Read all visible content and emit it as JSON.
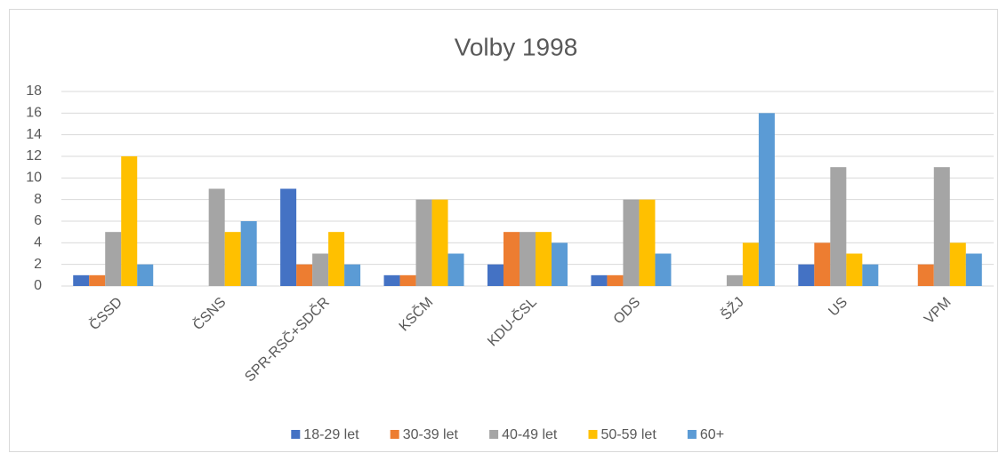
{
  "chart_data": {
    "type": "bar",
    "title": "Volby 1998",
    "categories": [
      "ČSSD",
      "ČSNS",
      "SPR-RSČ+SDČR",
      "KSČM",
      "KDU-ČSL",
      "ODS",
      "ŠŽJ",
      "US",
      "VPM"
    ],
    "series": [
      {
        "name": "18-29 let",
        "color": "#4472c4",
        "values": [
          1,
          0,
          9,
          1,
          2,
          1,
          0,
          2,
          0
        ]
      },
      {
        "name": "30-39 let",
        "color": "#ed7d31",
        "values": [
          1,
          0,
          2,
          1,
          5,
          1,
          0,
          4,
          2
        ]
      },
      {
        "name": "40-49 let",
        "color": "#a5a5a5",
        "values": [
          5,
          9,
          3,
          8,
          5,
          8,
          1,
          11,
          11
        ]
      },
      {
        "name": "50-59 let",
        "color": "#ffc000",
        "values": [
          12,
          5,
          5,
          8,
          5,
          8,
          4,
          3,
          4
        ]
      },
      {
        "name": "60+",
        "color": "#5b9bd5",
        "values": [
          2,
          6,
          2,
          3,
          4,
          3,
          16,
          2,
          3
        ]
      }
    ],
    "ylim": [
      0,
      18
    ],
    "yticks": [
      0,
      2,
      4,
      6,
      8,
      10,
      12,
      14,
      16,
      18
    ],
    "grid": true,
    "legend": "bottom"
  }
}
